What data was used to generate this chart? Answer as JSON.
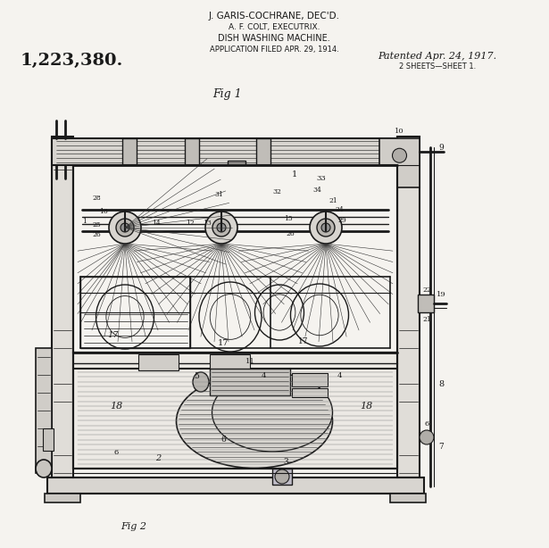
{
  "bg": "#f5f3ef",
  "lc": "#1a1a1a",
  "title1": "J. GARIS-COCHRANE, DEC'D.",
  "title2": "A. F. COLT, EXECUTRIX.",
  "title3": "DISH WASHING MACHINE.",
  "title4": "APPLICATION FILED APR. 29, 1914.",
  "patent_num": "1,223,380.",
  "patented": "Patented Apr. 24, 1917.",
  "sheets": "2 SHEETS—SHEET 1.",
  "fig1": "Fig 1",
  "fig2": "Fig 2"
}
